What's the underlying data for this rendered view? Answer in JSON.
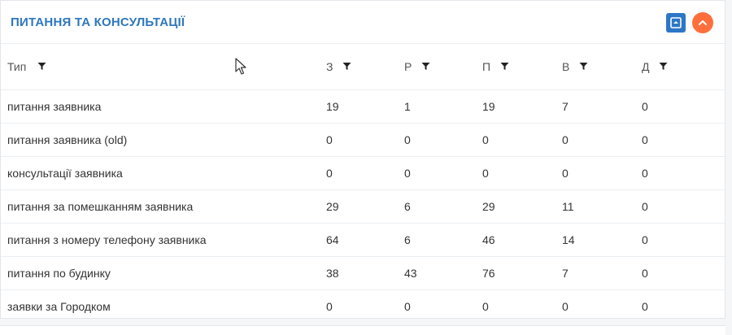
{
  "panel": {
    "title": "ПИТАННЯ ТА КОНСУЛЬТАЦІЇ",
    "accent_color": "#2e77bc",
    "actions": [
      {
        "icon": "collapse-square-icon",
        "color": "#2c77c6"
      },
      {
        "icon": "chevron-up-icon",
        "color": "#ff6f3c"
      }
    ]
  },
  "table": {
    "columns": [
      "Тип",
      "З",
      "Р",
      "П",
      "В",
      "Д"
    ],
    "filter_icon": "filter-icon",
    "rows": [
      {
        "type": "питання заявника",
        "z": "19",
        "r": "1",
        "p": "19",
        "v": "7",
        "d": "0"
      },
      {
        "type": "питання заявника (old)",
        "z": "0",
        "r": "0",
        "p": "0",
        "v": "0",
        "d": "0"
      },
      {
        "type": "консультації заявника",
        "z": "0",
        "r": "0",
        "p": "0",
        "v": "0",
        "d": "0"
      },
      {
        "type": "питання за помешканням заявника",
        "z": "29",
        "r": "6",
        "p": "29",
        "v": "11",
        "d": "0"
      },
      {
        "type": "питання з номеру телефону заявника",
        "z": "64",
        "r": "6",
        "p": "46",
        "v": "14",
        "d": "0"
      },
      {
        "type": "питання по будинку",
        "z": "38",
        "r": "43",
        "p": "76",
        "v": "7",
        "d": "0"
      },
      {
        "type": "заявки за Городком",
        "z": "0",
        "r": "0",
        "p": "0",
        "v": "0",
        "d": "0"
      }
    ]
  },
  "mouse_cursor": "cursor-arrow-icon"
}
